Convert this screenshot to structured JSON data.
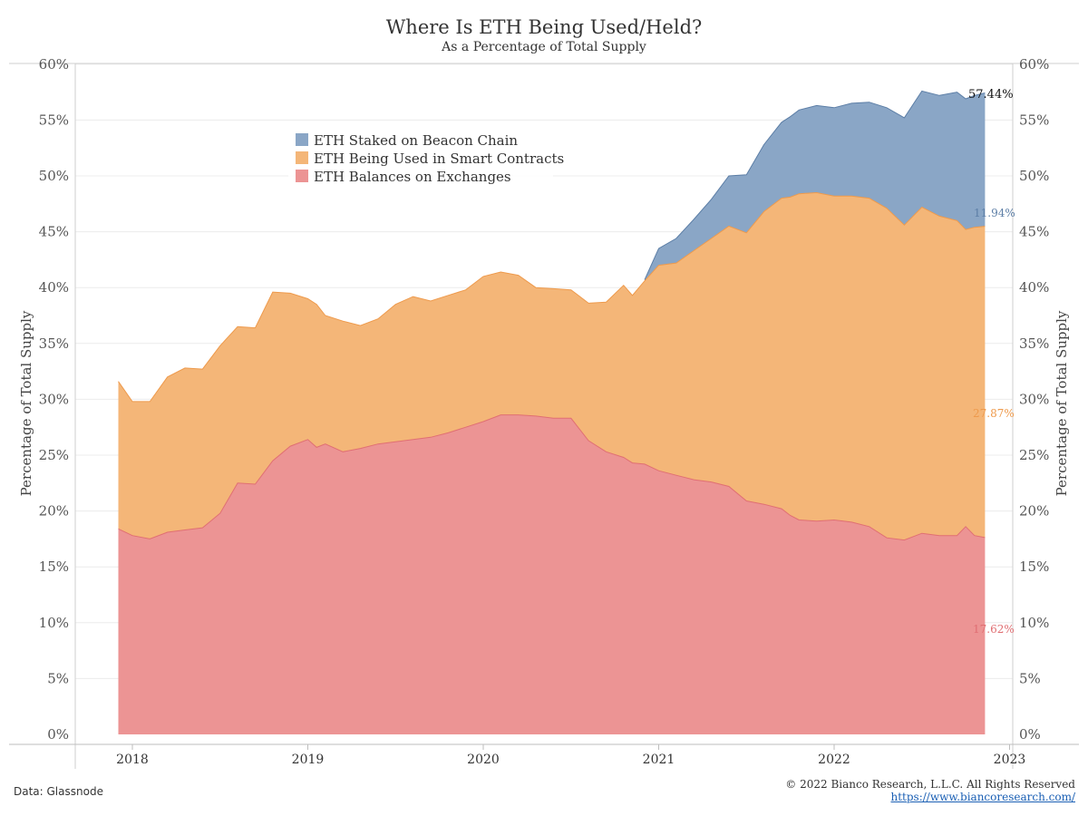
{
  "title": "Where Is ETH Being Used/Held?",
  "subtitle": "As a Percentage of Total Supply",
  "footer": {
    "source": "Data: Glassnode",
    "copyright": "© 2022 Bianco Research, L.L.C. All Rights Reserved",
    "url": "https://www.biancoresearch.com/"
  },
  "colors": {
    "staked": "#8aa6c6",
    "smart_contracts": "#f4b678",
    "exchanges": "#ec9494",
    "staked_line": "#5c7ea6",
    "smart_line": "#ee9a4c",
    "exchanges_line": "#e06f73"
  },
  "chart_data": {
    "type": "area",
    "stacked": true,
    "title": "Where Is ETH Being Used/Held?",
    "subtitle": "As a Percentage of Total Supply",
    "ylabel": "Percentage of Total Supply",
    "ylabel_right": "Percentage of Total Supply",
    "ylim": [
      0,
      60
    ],
    "y_ticks": [
      "0%",
      "5%",
      "10%",
      "15%",
      "20%",
      "25%",
      "30%",
      "35%",
      "40%",
      "45%",
      "50%",
      "55%",
      "60%"
    ],
    "x_ticks": [
      "2018",
      "2019",
      "2020",
      "2021",
      "2022",
      "2023"
    ],
    "legend_placement": "top-center",
    "grid": true,
    "series": [
      {
        "name": "ETH Staked on Beacon Chain",
        "end_label": "11.94%",
        "x": [
          2020.92,
          2021.0,
          2021.1,
          2021.2,
          2021.3,
          2021.4,
          2021.5,
          2021.6,
          2021.7,
          2021.75,
          2021.8,
          2021.9,
          2022.0,
          2022.1,
          2022.2,
          2022.3,
          2022.4,
          2022.5,
          2022.6,
          2022.7,
          2022.75,
          2022.8,
          2022.86
        ],
        "values": [
          0.1,
          1.5,
          2.2,
          2.8,
          3.5,
          4.5,
          5.2,
          6.0,
          6.8,
          7.2,
          7.5,
          7.8,
          7.9,
          8.3,
          8.6,
          9.0,
          9.6,
          10.4,
          10.8,
          11.5,
          11.7,
          11.8,
          11.94
        ]
      },
      {
        "name": "ETH Being Used in Smart Contracts",
        "end_label": "27.87%",
        "x": [
          2017.92,
          2018.0,
          2018.1,
          2018.2,
          2018.3,
          2018.4,
          2018.5,
          2018.6,
          2018.7,
          2018.8,
          2018.9,
          2019.0,
          2019.05,
          2019.1,
          2019.2,
          2019.3,
          2019.4,
          2019.5,
          2019.6,
          2019.7,
          2019.8,
          2019.9,
          2020.0,
          2020.1,
          2020.2,
          2020.3,
          2020.4,
          2020.5,
          2020.6,
          2020.7,
          2020.8,
          2020.85,
          2020.92,
          2021.0,
          2021.1,
          2021.2,
          2021.3,
          2021.4,
          2021.5,
          2021.6,
          2021.7,
          2021.75,
          2021.8,
          2021.9,
          2022.0,
          2022.1,
          2022.2,
          2022.3,
          2022.4,
          2022.5,
          2022.6,
          2022.7,
          2022.75,
          2022.8,
          2022.86
        ],
        "values": [
          13.2,
          12.0,
          12.3,
          13.9,
          14.5,
          14.2,
          15.0,
          14.0,
          14.0,
          15.1,
          13.7,
          12.6,
          12.8,
          11.5,
          11.7,
          11.0,
          11.2,
          12.3,
          12.8,
          12.2,
          12.3,
          12.3,
          13.0,
          12.8,
          12.5,
          11.5,
          11.6,
          11.5,
          12.3,
          13.4,
          15.4,
          15.0,
          16.4,
          18.4,
          19.0,
          20.5,
          21.8,
          23.3,
          24.0,
          26.2,
          27.8,
          28.5,
          29.2,
          29.4,
          29.0,
          29.2,
          29.4,
          29.5,
          28.2,
          29.2,
          28.6,
          28.2,
          26.6,
          27.6,
          27.87
        ]
      },
      {
        "name": "ETH Balances on Exchanges",
        "end_label": "17.62%",
        "x": [
          2017.92,
          2018.0,
          2018.1,
          2018.2,
          2018.3,
          2018.4,
          2018.5,
          2018.6,
          2018.7,
          2018.8,
          2018.9,
          2019.0,
          2019.05,
          2019.1,
          2019.2,
          2019.3,
          2019.4,
          2019.5,
          2019.6,
          2019.7,
          2019.8,
          2019.9,
          2020.0,
          2020.1,
          2020.2,
          2020.3,
          2020.4,
          2020.5,
          2020.6,
          2020.7,
          2020.8,
          2020.85,
          2020.92,
          2021.0,
          2021.1,
          2021.2,
          2021.3,
          2021.4,
          2021.5,
          2021.6,
          2021.7,
          2021.75,
          2021.8,
          2021.9,
          2022.0,
          2022.1,
          2022.2,
          2022.3,
          2022.4,
          2022.5,
          2022.6,
          2022.7,
          2022.75,
          2022.8,
          2022.86
        ],
        "values": [
          18.4,
          17.8,
          17.5,
          18.1,
          18.3,
          18.5,
          19.8,
          22.5,
          22.4,
          24.5,
          25.8,
          26.4,
          25.7,
          26.0,
          25.3,
          25.6,
          26.0,
          26.2,
          26.4,
          26.6,
          27.0,
          27.5,
          28.0,
          28.6,
          28.6,
          28.5,
          28.3,
          28.3,
          26.3,
          25.3,
          24.8,
          24.3,
          24.2,
          23.6,
          23.2,
          22.8,
          22.6,
          22.2,
          20.9,
          20.6,
          20.2,
          19.6,
          19.2,
          19.1,
          19.2,
          19.0,
          18.6,
          17.6,
          17.4,
          18.0,
          17.8,
          17.8,
          18.6,
          17.8,
          17.62
        ]
      }
    ],
    "top_end_label": "57.44%"
  }
}
